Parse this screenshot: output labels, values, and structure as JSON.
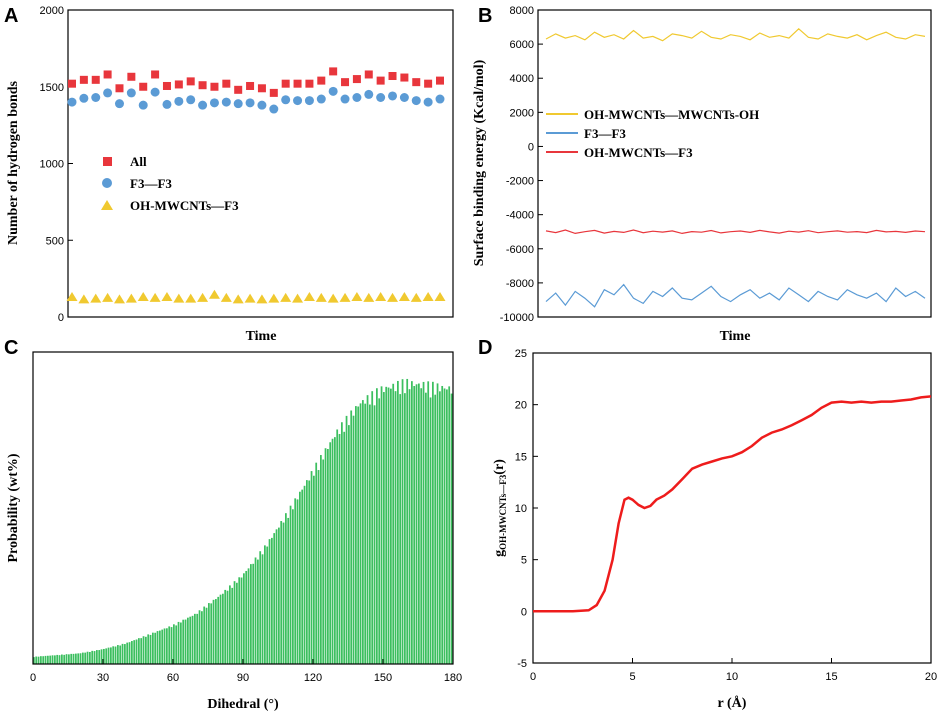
{
  "panels": [
    {
      "label": "A"
    },
    {
      "label": "B"
    },
    {
      "label": "C"
    },
    {
      "label": "D"
    }
  ],
  "colors": {
    "red": "#e8363c",
    "blue": "#5b9bd5",
    "yellow": "#f0c930",
    "green": "#3cbf5f",
    "rdf": "#ee1c1c"
  },
  "chart_data": [
    {
      "type": "scatter",
      "panel": "A",
      "xlabel": "Time",
      "ylabel": "Number of hydrogen bonds",
      "ylim": [
        0,
        2000
      ],
      "yticks": [
        0,
        500,
        1000,
        1500,
        2000
      ],
      "x": [
        1,
        2,
        3,
        4,
        5,
        6,
        7,
        8,
        9,
        10,
        11,
        12,
        13,
        14,
        15,
        16,
        17,
        18,
        19,
        20,
        21,
        22,
        23,
        24,
        25,
        26,
        27,
        28,
        29,
        30,
        31,
        32
      ],
      "series": [
        {
          "name": "All",
          "marker": "square",
          "values": [
            1520,
            1545,
            1545,
            1580,
            1490,
            1565,
            1500,
            1580,
            1505,
            1515,
            1535,
            1510,
            1500,
            1520,
            1480,
            1505,
            1490,
            1460,
            1520,
            1520,
            1520,
            1540,
            1600,
            1530,
            1550,
            1580,
            1540,
            1570,
            1560,
            1530,
            1520,
            1540
          ]
        },
        {
          "name": "F3—F3",
          "marker": "circle",
          "values": [
            1400,
            1425,
            1430,
            1460,
            1390,
            1460,
            1380,
            1465,
            1385,
            1405,
            1415,
            1380,
            1395,
            1400,
            1390,
            1395,
            1380,
            1355,
            1415,
            1410,
            1410,
            1420,
            1470,
            1420,
            1430,
            1450,
            1430,
            1440,
            1430,
            1410,
            1400,
            1420
          ]
        },
        {
          "name": "OH-MWCNTs—F3",
          "marker": "triangle",
          "values": [
            130,
            115,
            120,
            125,
            115,
            120,
            130,
            125,
            130,
            120,
            120,
            125,
            145,
            125,
            115,
            120,
            115,
            120,
            125,
            120,
            130,
            125,
            120,
            125,
            130,
            125,
            130,
            125,
            130,
            125,
            130,
            130
          ]
        }
      ]
    },
    {
      "type": "line",
      "panel": "B",
      "xlabel": "Time",
      "ylabel": "Surface binding energy (Kcal/mol)",
      "ylim": [
        -10000,
        8000
      ],
      "yticks": [
        -10000,
        -8000,
        -6000,
        -4000,
        -2000,
        0,
        2000,
        4000,
        6000,
        8000
      ],
      "series": [
        {
          "name": "OH-MWCNTs—MWCNTs-OH",
          "mean": 6400,
          "values": [
            6300,
            6600,
            6350,
            6500,
            6250,
            6700,
            6400,
            6550,
            6300,
            6800,
            6350,
            6450,
            6200,
            6600,
            6500,
            6350,
            6750,
            6400,
            6300,
            6550,
            6450,
            6250,
            6650,
            6400,
            6500,
            6350,
            6900,
            6400,
            6300,
            6600,
            6450,
            6350,
            6550,
            6250,
            6500,
            6700,
            6400,
            6300,
            6550,
            6450
          ]
        },
        {
          "name": "F3—F3",
          "mean": -8800,
          "values": [
            -9100,
            -8600,
            -9300,
            -8500,
            -8900,
            -9400,
            -8400,
            -8700,
            -8100,
            -8900,
            -9200,
            -8500,
            -8800,
            -8300,
            -8900,
            -9000,
            -8600,
            -8200,
            -8800,
            -9100,
            -8700,
            -8400,
            -8900,
            -8600,
            -9000,
            -8300,
            -8700,
            -9100,
            -8500,
            -8800,
            -9000,
            -8400,
            -8700,
            -8900,
            -8600,
            -9100,
            -8300,
            -8800,
            -8500,
            -8900
          ]
        },
        {
          "name": "OH-MWCNTs—F3",
          "mean": -5000,
          "values": [
            -4950,
            -5050,
            -4900,
            -5100,
            -5000,
            -4920,
            -5080,
            -4980,
            -5040,
            -4900,
            -5060,
            -4970,
            -5020,
            -4950,
            -5100,
            -4990,
            -5030,
            -4930,
            -5070,
            -5000,
            -4960,
            -5040,
            -4920,
            -5010,
            -5080,
            -4970,
            -5020,
            -4940,
            -5060,
            -5000,
            -4950,
            -5030,
            -4990,
            -5050,
            -4920,
            -5010,
            -4980,
            -5040,
            -4960,
            -5000
          ]
        }
      ]
    },
    {
      "type": "bar",
      "panel": "C",
      "xlabel": "Dihedral (°)",
      "ylabel": "Probability (wt%)",
      "xlim": [
        0,
        180
      ],
      "xticks": [
        0,
        30,
        60,
        90,
        120,
        150,
        180
      ],
      "note": "Histogram of dihedral angle probability (arbitrary units, y-axis has no tick labels)",
      "x_samples": [
        0,
        10,
        20,
        30,
        40,
        50,
        60,
        70,
        80,
        90,
        100,
        110,
        120,
        130,
        140,
        150,
        160,
        170,
        180
      ],
      "y_samples": [
        0.024,
        0.03,
        0.036,
        0.05,
        0.07,
        0.1,
        0.13,
        0.17,
        0.23,
        0.3,
        0.4,
        0.52,
        0.65,
        0.78,
        0.88,
        0.93,
        0.95,
        0.94,
        0.93
      ]
    },
    {
      "type": "line",
      "panel": "D",
      "xlabel": "r (Å)",
      "ylabel_prefix": "g",
      "ylabel_subscript": "OH-MWCNTs—F3",
      "ylabel_suffix": "(r)",
      "xlim": [
        0,
        20
      ],
      "ylim": [
        -5,
        25
      ],
      "xticks": [
        0,
        5,
        10,
        15,
        20
      ],
      "yticks": [
        -5,
        0,
        5,
        10,
        15,
        20,
        25
      ],
      "x": [
        0,
        1,
        2,
        2.8,
        3.2,
        3.6,
        4.0,
        4.3,
        4.6,
        4.8,
        5.0,
        5.3,
        5.6,
        5.9,
        6.2,
        6.6,
        7.0,
        7.5,
        8.0,
        8.5,
        9.0,
        9.5,
        10.0,
        10.5,
        11.0,
        11.5,
        12.0,
        12.5,
        13.0,
        13.5,
        14.0,
        14.5,
        15.0,
        15.5,
        16.0,
        16.5,
        17.0,
        17.5,
        18.0,
        18.5,
        19.0,
        19.5,
        20.0
      ],
      "y": [
        0,
        0,
        0,
        0.1,
        0.6,
        2.0,
        5.0,
        8.5,
        10.8,
        11.0,
        10.8,
        10.3,
        10.0,
        10.2,
        10.8,
        11.2,
        11.8,
        12.8,
        13.8,
        14.2,
        14.5,
        14.8,
        15.0,
        15.4,
        16.0,
        16.8,
        17.3,
        17.6,
        18.0,
        18.5,
        19.0,
        19.7,
        20.2,
        20.3,
        20.2,
        20.3,
        20.2,
        20.3,
        20.3,
        20.4,
        20.5,
        20.7,
        20.8
      ]
    }
  ]
}
